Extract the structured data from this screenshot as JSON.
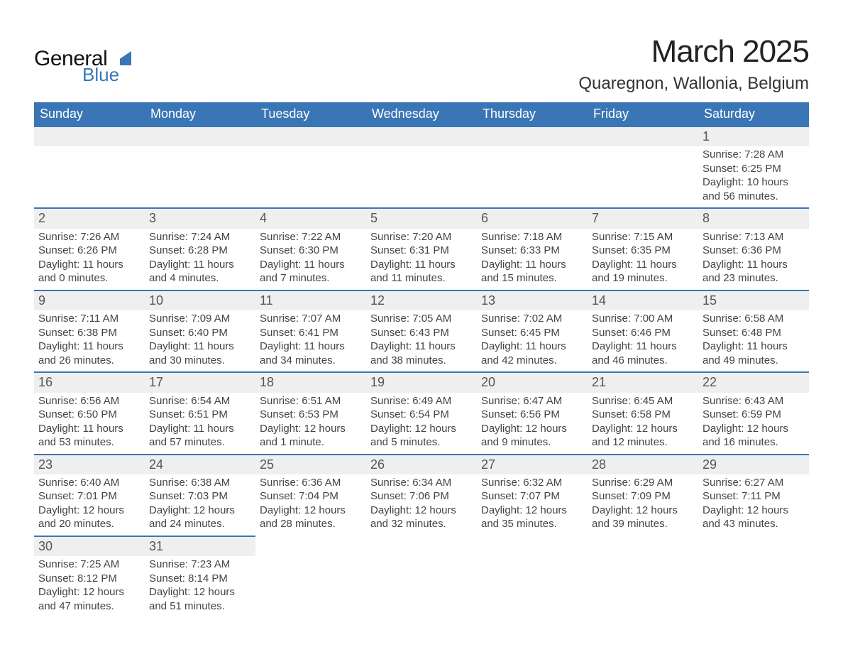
{
  "brand": {
    "word1": "General",
    "word2": "Blue",
    "accent_color": "#3a76b6"
  },
  "title": "March 2025",
  "location": "Quaregnon, Wallonia, Belgium",
  "colors": {
    "header_bg": "#3a76b6",
    "header_text": "#ffffff",
    "row_stripe": "#efefef",
    "row_border": "#3a76b6",
    "body_text": "#444444"
  },
  "weekdays": [
    "Sunday",
    "Monday",
    "Tuesday",
    "Wednesday",
    "Thursday",
    "Friday",
    "Saturday"
  ],
  "weeks": [
    [
      null,
      null,
      null,
      null,
      null,
      null,
      {
        "n": "1",
        "sr": "Sunrise: 7:28 AM",
        "ss": "Sunset: 6:25 PM",
        "d1": "Daylight: 10 hours",
        "d2": "and 56 minutes."
      }
    ],
    [
      {
        "n": "2",
        "sr": "Sunrise: 7:26 AM",
        "ss": "Sunset: 6:26 PM",
        "d1": "Daylight: 11 hours",
        "d2": "and 0 minutes."
      },
      {
        "n": "3",
        "sr": "Sunrise: 7:24 AM",
        "ss": "Sunset: 6:28 PM",
        "d1": "Daylight: 11 hours",
        "d2": "and 4 minutes."
      },
      {
        "n": "4",
        "sr": "Sunrise: 7:22 AM",
        "ss": "Sunset: 6:30 PM",
        "d1": "Daylight: 11 hours",
        "d2": "and 7 minutes."
      },
      {
        "n": "5",
        "sr": "Sunrise: 7:20 AM",
        "ss": "Sunset: 6:31 PM",
        "d1": "Daylight: 11 hours",
        "d2": "and 11 minutes."
      },
      {
        "n": "6",
        "sr": "Sunrise: 7:18 AM",
        "ss": "Sunset: 6:33 PM",
        "d1": "Daylight: 11 hours",
        "d2": "and 15 minutes."
      },
      {
        "n": "7",
        "sr": "Sunrise: 7:15 AM",
        "ss": "Sunset: 6:35 PM",
        "d1": "Daylight: 11 hours",
        "d2": "and 19 minutes."
      },
      {
        "n": "8",
        "sr": "Sunrise: 7:13 AM",
        "ss": "Sunset: 6:36 PM",
        "d1": "Daylight: 11 hours",
        "d2": "and 23 minutes."
      }
    ],
    [
      {
        "n": "9",
        "sr": "Sunrise: 7:11 AM",
        "ss": "Sunset: 6:38 PM",
        "d1": "Daylight: 11 hours",
        "d2": "and 26 minutes."
      },
      {
        "n": "10",
        "sr": "Sunrise: 7:09 AM",
        "ss": "Sunset: 6:40 PM",
        "d1": "Daylight: 11 hours",
        "d2": "and 30 minutes."
      },
      {
        "n": "11",
        "sr": "Sunrise: 7:07 AM",
        "ss": "Sunset: 6:41 PM",
        "d1": "Daylight: 11 hours",
        "d2": "and 34 minutes."
      },
      {
        "n": "12",
        "sr": "Sunrise: 7:05 AM",
        "ss": "Sunset: 6:43 PM",
        "d1": "Daylight: 11 hours",
        "d2": "and 38 minutes."
      },
      {
        "n": "13",
        "sr": "Sunrise: 7:02 AM",
        "ss": "Sunset: 6:45 PM",
        "d1": "Daylight: 11 hours",
        "d2": "and 42 minutes."
      },
      {
        "n": "14",
        "sr": "Sunrise: 7:00 AM",
        "ss": "Sunset: 6:46 PM",
        "d1": "Daylight: 11 hours",
        "d2": "and 46 minutes."
      },
      {
        "n": "15",
        "sr": "Sunrise: 6:58 AM",
        "ss": "Sunset: 6:48 PM",
        "d1": "Daylight: 11 hours",
        "d2": "and 49 minutes."
      }
    ],
    [
      {
        "n": "16",
        "sr": "Sunrise: 6:56 AM",
        "ss": "Sunset: 6:50 PM",
        "d1": "Daylight: 11 hours",
        "d2": "and 53 minutes."
      },
      {
        "n": "17",
        "sr": "Sunrise: 6:54 AM",
        "ss": "Sunset: 6:51 PM",
        "d1": "Daylight: 11 hours",
        "d2": "and 57 minutes."
      },
      {
        "n": "18",
        "sr": "Sunrise: 6:51 AM",
        "ss": "Sunset: 6:53 PM",
        "d1": "Daylight: 12 hours",
        "d2": "and 1 minute."
      },
      {
        "n": "19",
        "sr": "Sunrise: 6:49 AM",
        "ss": "Sunset: 6:54 PM",
        "d1": "Daylight: 12 hours",
        "d2": "and 5 minutes."
      },
      {
        "n": "20",
        "sr": "Sunrise: 6:47 AM",
        "ss": "Sunset: 6:56 PM",
        "d1": "Daylight: 12 hours",
        "d2": "and 9 minutes."
      },
      {
        "n": "21",
        "sr": "Sunrise: 6:45 AM",
        "ss": "Sunset: 6:58 PM",
        "d1": "Daylight: 12 hours",
        "d2": "and 12 minutes."
      },
      {
        "n": "22",
        "sr": "Sunrise: 6:43 AM",
        "ss": "Sunset: 6:59 PM",
        "d1": "Daylight: 12 hours",
        "d2": "and 16 minutes."
      }
    ],
    [
      {
        "n": "23",
        "sr": "Sunrise: 6:40 AM",
        "ss": "Sunset: 7:01 PM",
        "d1": "Daylight: 12 hours",
        "d2": "and 20 minutes."
      },
      {
        "n": "24",
        "sr": "Sunrise: 6:38 AM",
        "ss": "Sunset: 7:03 PM",
        "d1": "Daylight: 12 hours",
        "d2": "and 24 minutes."
      },
      {
        "n": "25",
        "sr": "Sunrise: 6:36 AM",
        "ss": "Sunset: 7:04 PM",
        "d1": "Daylight: 12 hours",
        "d2": "and 28 minutes."
      },
      {
        "n": "26",
        "sr": "Sunrise: 6:34 AM",
        "ss": "Sunset: 7:06 PM",
        "d1": "Daylight: 12 hours",
        "d2": "and 32 minutes."
      },
      {
        "n": "27",
        "sr": "Sunrise: 6:32 AM",
        "ss": "Sunset: 7:07 PM",
        "d1": "Daylight: 12 hours",
        "d2": "and 35 minutes."
      },
      {
        "n": "28",
        "sr": "Sunrise: 6:29 AM",
        "ss": "Sunset: 7:09 PM",
        "d1": "Daylight: 12 hours",
        "d2": "and 39 minutes."
      },
      {
        "n": "29",
        "sr": "Sunrise: 6:27 AM",
        "ss": "Sunset: 7:11 PM",
        "d1": "Daylight: 12 hours",
        "d2": "and 43 minutes."
      }
    ],
    [
      {
        "n": "30",
        "sr": "Sunrise: 7:25 AM",
        "ss": "Sunset: 8:12 PM",
        "d1": "Daylight: 12 hours",
        "d2": "and 47 minutes."
      },
      {
        "n": "31",
        "sr": "Sunrise: 7:23 AM",
        "ss": "Sunset: 8:14 PM",
        "d1": "Daylight: 12 hours",
        "d2": "and 51 minutes."
      },
      null,
      null,
      null,
      null,
      null
    ]
  ]
}
